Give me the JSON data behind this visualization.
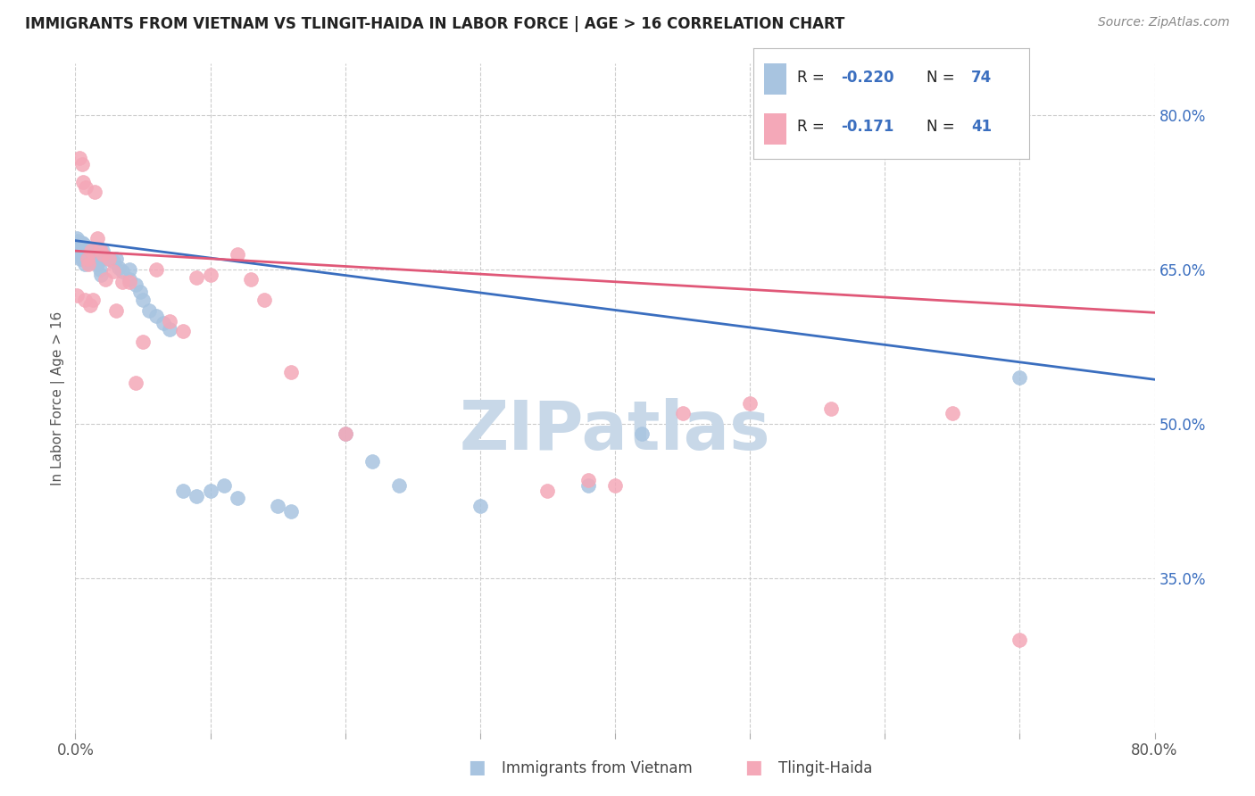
{
  "title": "IMMIGRANTS FROM VIETNAM VS TLINGIT-HAIDA IN LABOR FORCE | AGE > 16 CORRELATION CHART",
  "source": "Source: ZipAtlas.com",
  "ylabel": "In Labor Force | Age > 16",
  "xlim": [
    0.0,
    0.8
  ],
  "ylim": [
    0.2,
    0.85
  ],
  "x_ticks": [
    0.0,
    0.1,
    0.2,
    0.3,
    0.4,
    0.5,
    0.6,
    0.7,
    0.8
  ],
  "x_tick_labels": [
    "0.0%",
    "",
    "",
    "",
    "",
    "",
    "",
    "",
    "80.0%"
  ],
  "y_ticks_right": [
    0.35,
    0.5,
    0.65,
    0.8
  ],
  "y_tick_labels_right": [
    "35.0%",
    "50.0%",
    "65.0%",
    "80.0%"
  ],
  "blue_color": "#A8C4E0",
  "pink_color": "#F4A8B8",
  "blue_line_color": "#3A6EBF",
  "pink_line_color": "#E05878",
  "watermark": "ZIPatlas",
  "watermark_color": "#C8D8E8",
  "background_color": "#FFFFFF",
  "blue_scatter_x": [
    0.001,
    0.001,
    0.002,
    0.002,
    0.003,
    0.003,
    0.003,
    0.004,
    0.004,
    0.004,
    0.005,
    0.005,
    0.005,
    0.005,
    0.006,
    0.006,
    0.006,
    0.006,
    0.007,
    0.007,
    0.007,
    0.007,
    0.007,
    0.008,
    0.008,
    0.008,
    0.009,
    0.009,
    0.01,
    0.01,
    0.01,
    0.01,
    0.011,
    0.011,
    0.012,
    0.012,
    0.013,
    0.014,
    0.015,
    0.015,
    0.016,
    0.017,
    0.018,
    0.019,
    0.02,
    0.022,
    0.025,
    0.028,
    0.03,
    0.032,
    0.035,
    0.04,
    0.04,
    0.045,
    0.048,
    0.05,
    0.055,
    0.06,
    0.065,
    0.07,
    0.08,
    0.09,
    0.1,
    0.11,
    0.12,
    0.15,
    0.16,
    0.2,
    0.22,
    0.24,
    0.3,
    0.38,
    0.42,
    0.7
  ],
  "blue_scatter_y": [
    0.68,
    0.672,
    0.678,
    0.665,
    0.67,
    0.668,
    0.674,
    0.672,
    0.668,
    0.66,
    0.676,
    0.671,
    0.665,
    0.66,
    0.675,
    0.67,
    0.665,
    0.66,
    0.673,
    0.669,
    0.665,
    0.66,
    0.655,
    0.671,
    0.667,
    0.662,
    0.668,
    0.663,
    0.67,
    0.666,
    0.661,
    0.656,
    0.664,
    0.659,
    0.668,
    0.662,
    0.66,
    0.658,
    0.665,
    0.66,
    0.655,
    0.658,
    0.65,
    0.645,
    0.668,
    0.662,
    0.66,
    0.658,
    0.66,
    0.652,
    0.648,
    0.64,
    0.65,
    0.635,
    0.628,
    0.62,
    0.61,
    0.605,
    0.598,
    0.592,
    0.435,
    0.43,
    0.435,
    0.44,
    0.428,
    0.42,
    0.415,
    0.49,
    0.463,
    0.44,
    0.42,
    0.44,
    0.49,
    0.545
  ],
  "pink_scatter_x": [
    0.001,
    0.003,
    0.005,
    0.006,
    0.007,
    0.008,
    0.009,
    0.01,
    0.011,
    0.012,
    0.013,
    0.014,
    0.016,
    0.018,
    0.02,
    0.022,
    0.025,
    0.028,
    0.03,
    0.035,
    0.04,
    0.045,
    0.05,
    0.06,
    0.07,
    0.08,
    0.09,
    0.1,
    0.12,
    0.13,
    0.14,
    0.16,
    0.2,
    0.35,
    0.38,
    0.4,
    0.45,
    0.5,
    0.56,
    0.65,
    0.7
  ],
  "pink_scatter_y": [
    0.625,
    0.758,
    0.752,
    0.735,
    0.62,
    0.73,
    0.66,
    0.655,
    0.615,
    0.668,
    0.62,
    0.725,
    0.68,
    0.67,
    0.665,
    0.64,
    0.66,
    0.648,
    0.61,
    0.638,
    0.638,
    0.54,
    0.58,
    0.65,
    0.6,
    0.59,
    0.642,
    0.645,
    0.665,
    0.64,
    0.62,
    0.55,
    0.49,
    0.435,
    0.445,
    0.44,
    0.51,
    0.52,
    0.515,
    0.51,
    0.29
  ],
  "blue_line_x0": 0.0,
  "blue_line_x1": 0.8,
  "blue_line_y0": 0.678,
  "blue_line_y1": 0.543,
  "pink_line_x0": 0.0,
  "pink_line_x1": 0.8,
  "pink_line_y0": 0.668,
  "pink_line_y1": 0.608
}
